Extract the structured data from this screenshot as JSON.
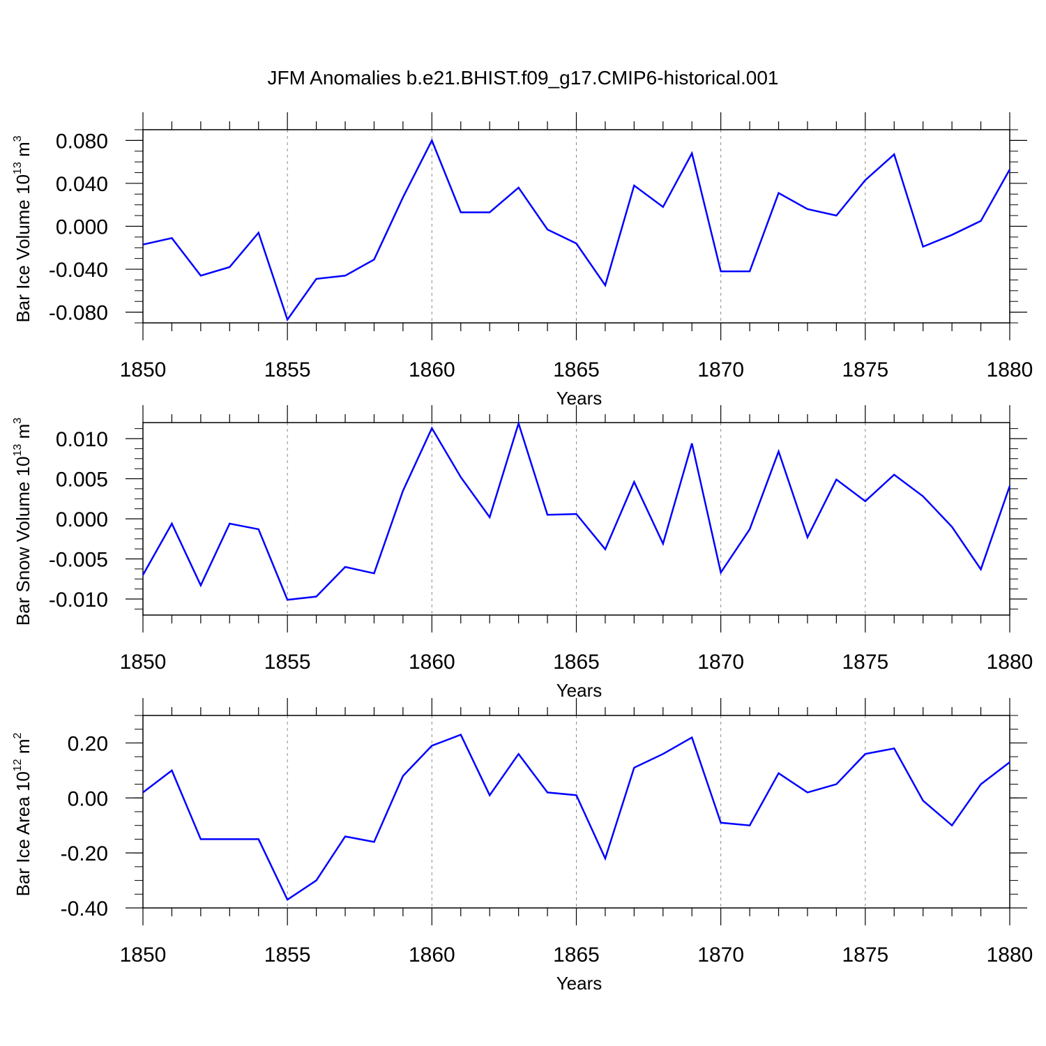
{
  "title": "JFM Anomalies b.e21.BHIST.f09_g17.CMIP6-historical.001",
  "colors": {
    "line": "#0000ff",
    "axis": "#000000",
    "grid": "#888888"
  },
  "chart_data": [
    {
      "type": "line",
      "title": "",
      "xlabel": "Years",
      "ylabel": "Bar Ice Volume 10",
      "ylabel_exp": "13",
      "ylabel_unit": " m",
      "ylabel_unit_exp": "3",
      "xlim": [
        1850,
        1880
      ],
      "ylim": [
        -0.09,
        0.09
      ],
      "x_ticks": [
        "1850",
        "1855",
        "1860",
        "1865",
        "1870",
        "1875",
        "1880"
      ],
      "y_ticks": [
        {
          "value": 0.08,
          "label": "0.080"
        },
        {
          "value": 0.04,
          "label": "0.040"
        },
        {
          "value": 0.0,
          "label": "0.000"
        },
        {
          "value": -0.04,
          "label": "-0.040"
        },
        {
          "value": -0.08,
          "label": "-0.080"
        }
      ],
      "x": [
        1850,
        1851,
        1852,
        1853,
        1854,
        1855,
        1856,
        1857,
        1858,
        1859,
        1860,
        1861,
        1862,
        1863,
        1864,
        1865,
        1866,
        1867,
        1868,
        1869,
        1870,
        1871,
        1872,
        1873,
        1874,
        1875,
        1876,
        1877,
        1878,
        1879,
        1880
      ],
      "series": [
        {
          "name": "Bar Ice Volume",
          "values": [
            -0.017,
            -0.011,
            -0.046,
            -0.038,
            -0.006,
            -0.087,
            -0.049,
            -0.046,
            -0.031,
            0.027,
            0.08,
            0.013,
            0.013,
            0.036,
            -0.003,
            -0.016,
            -0.055,
            0.038,
            0.018,
            0.068,
            -0.042,
            -0.042,
            0.031,
            0.016,
            0.01,
            0.043,
            0.067,
            -0.019,
            -0.008,
            0.005,
            0.053
          ]
        }
      ]
    },
    {
      "type": "line",
      "title": "",
      "xlabel": "Years",
      "ylabel": "Bar Snow Volume 10",
      "ylabel_exp": "13",
      "ylabel_unit": " m",
      "ylabel_unit_exp": "3",
      "xlim": [
        1850,
        1880
      ],
      "ylim": [
        -0.012,
        0.012
      ],
      "x_ticks": [
        "1850",
        "1855",
        "1860",
        "1865",
        "1870",
        "1875",
        "1880"
      ],
      "y_ticks": [
        {
          "value": 0.01,
          "label": "0.010"
        },
        {
          "value": 0.005,
          "label": "0.005"
        },
        {
          "value": 0.0,
          "label": "0.000"
        },
        {
          "value": -0.005,
          "label": "-0.005"
        },
        {
          "value": -0.01,
          "label": "-0.010"
        }
      ],
      "x": [
        1850,
        1851,
        1852,
        1853,
        1854,
        1855,
        1856,
        1857,
        1858,
        1859,
        1860,
        1861,
        1862,
        1863,
        1864,
        1865,
        1866,
        1867,
        1868,
        1869,
        1870,
        1871,
        1872,
        1873,
        1874,
        1875,
        1876,
        1877,
        1878,
        1879,
        1880
      ],
      "series": [
        {
          "name": "Bar Snow Volume",
          "values": [
            -0.007,
            -0.0006,
            -0.0083,
            -0.0006,
            -0.0013,
            -0.0101,
            -0.0097,
            -0.006,
            -0.0068,
            0.0035,
            0.0113,
            0.0052,
            0.0002,
            0.0119,
            0.0005,
            0.0006,
            -0.0038,
            0.0046,
            -0.0031,
            0.0094,
            -0.0067,
            -0.0013,
            0.0084,
            -0.0023,
            0.0049,
            0.0022,
            0.0055,
            0.0028,
            -0.001,
            -0.0063,
            0.0041
          ]
        }
      ]
    },
    {
      "type": "line",
      "title": "",
      "xlabel": "Years",
      "ylabel": "Bar Ice Area 10",
      "ylabel_exp": "12",
      "ylabel_unit": " m",
      "ylabel_unit_exp": "2",
      "xlim": [
        1850,
        1880
      ],
      "ylim": [
        -0.4,
        0.3
      ],
      "x_ticks": [
        "1850",
        "1855",
        "1860",
        "1865",
        "1870",
        "1875",
        "1880"
      ],
      "y_ticks": [
        {
          "value": 0.2,
          "label": "0.20"
        },
        {
          "value": 0.0,
          "label": "0.00"
        },
        {
          "value": -0.2,
          "label": "-0.20"
        },
        {
          "value": -0.4,
          "label": "-0.40"
        }
      ],
      "x": [
        1850,
        1851,
        1852,
        1853,
        1854,
        1855,
        1856,
        1857,
        1858,
        1859,
        1860,
        1861,
        1862,
        1863,
        1864,
        1865,
        1866,
        1867,
        1868,
        1869,
        1870,
        1871,
        1872,
        1873,
        1874,
        1875,
        1876,
        1877,
        1878,
        1879,
        1880
      ],
      "series": [
        {
          "name": "Bar Ice Area",
          "values": [
            0.02,
            0.1,
            -0.15,
            -0.15,
            -0.15,
            -0.37,
            -0.3,
            -0.14,
            -0.16,
            0.08,
            0.19,
            0.23,
            0.01,
            0.16,
            0.02,
            0.01,
            -0.22,
            0.11,
            0.16,
            0.22,
            -0.09,
            -0.1,
            0.09,
            0.02,
            0.05,
            0.16,
            0.18,
            -0.01,
            -0.1,
            0.05,
            0.13
          ]
        }
      ]
    }
  ]
}
